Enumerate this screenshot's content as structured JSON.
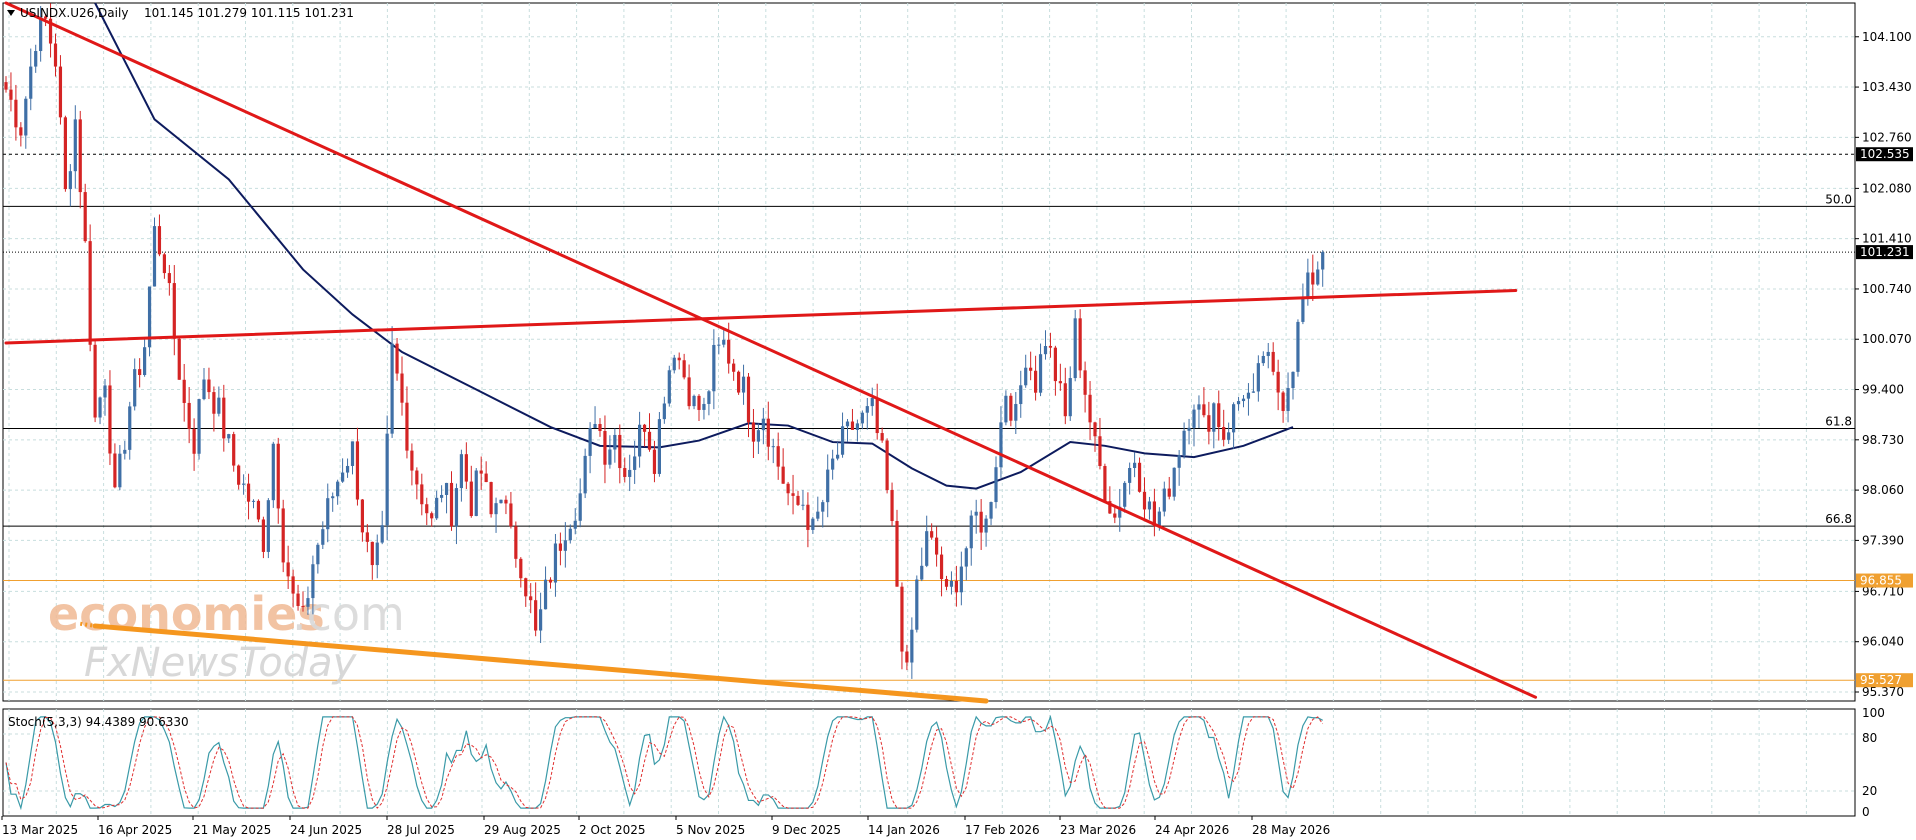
{
  "header": {
    "symbol_label": "USINDX.U26,Daily",
    "ohlc_label": "101.145 101.279 101.115 101.231"
  },
  "watermark": {
    "line1": "economies",
    "line1_suffix": ".com",
    "line2": "FxNewsToday"
  },
  "chart_data": [
    {
      "type": "candlestick",
      "title": "USINDX.U26,Daily",
      "ohlc_latest": {
        "open": 101.145,
        "high": 101.279,
        "low": 101.115,
        "close": 101.231
      },
      "x_ticks": [
        "13 Mar 2025",
        "16 Apr 2025",
        "21 May 2025",
        "24 Jun 2025",
        "28 Jul 2025",
        "29 Aug 2025",
        "2 Oct 2025",
        "5 Nov 2025",
        "9 Dec 2025",
        "14 Jan 2026",
        "17 Feb 2026",
        "23 Mar 2026",
        "24 Apr 2026",
        "28 May 2026"
      ],
      "y_ticks": [
        "104.100",
        "103.430",
        "102.760",
        "102.080",
        "101.410",
        "100.740",
        "100.070",
        "99.400",
        "98.730",
        "98.060",
        "97.390",
        "96.710",
        "96.040",
        "95.370"
      ],
      "ylim": [
        95.25,
        104.55
      ],
      "price_labels": [
        {
          "value": 102.535,
          "text": "102.535",
          "color": "#000000",
          "line": "dashed"
        },
        {
          "value": 101.231,
          "text": "101.231",
          "color": "#000000",
          "line": "dotted"
        },
        {
          "value": 96.855,
          "text": "96.855",
          "color": "#f0a030",
          "line": "solid"
        },
        {
          "value": 95.527,
          "text": "95.527",
          "color": "#f0a030",
          "line": "solid"
        }
      ],
      "fib_levels": [
        {
          "label": "50.0",
          "value": 101.84
        },
        {
          "label": "61.8",
          "value": 98.88
        },
        {
          "label": "66.8",
          "value": 97.58
        }
      ],
      "trendlines": [
        {
          "name": "falling resistance",
          "color": "#e01818",
          "from": {
            "bar": 0,
            "price": 104.55
          },
          "to": {
            "bar": 309,
            "price": 95.3
          }
        },
        {
          "name": "horizontal trendline",
          "color": "#e01818",
          "from": {
            "bar": 0,
            "price": 100.02
          },
          "to": {
            "bar": 305,
            "price": 100.72
          }
        },
        {
          "name": "support line",
          "color": "#f5961e",
          "from": {
            "bar": 18,
            "price": 96.25
          },
          "to": {
            "bar": 198,
            "price": 95.25
          }
        }
      ],
      "moving_average": {
        "color": "#0d1b5e",
        "points": [
          {
            "bar": 18,
            "price": 104.55
          },
          {
            "bar": 30,
            "price": 103.0
          },
          {
            "bar": 45,
            "price": 102.2
          },
          {
            "bar": 60,
            "price": 101.0
          },
          {
            "bar": 70,
            "price": 100.4
          },
          {
            "bar": 80,
            "price": 99.9
          },
          {
            "bar": 95,
            "price": 99.4
          },
          {
            "bar": 110,
            "price": 98.9
          },
          {
            "bar": 120,
            "price": 98.65
          },
          {
            "bar": 132,
            "price": 98.63
          },
          {
            "bar": 140,
            "price": 98.72
          },
          {
            "bar": 150,
            "price": 98.95
          },
          {
            "bar": 158,
            "price": 98.92
          },
          {
            "bar": 167,
            "price": 98.7
          },
          {
            "bar": 175,
            "price": 98.68
          },
          {
            "bar": 183,
            "price": 98.35
          },
          {
            "bar": 190,
            "price": 98.12
          },
          {
            "bar": 196,
            "price": 98.08
          },
          {
            "bar": 205,
            "price": 98.3
          },
          {
            "bar": 215,
            "price": 98.7
          },
          {
            "bar": 222,
            "price": 98.65
          },
          {
            "bar": 230,
            "price": 98.55
          },
          {
            "bar": 240,
            "price": 98.5
          },
          {
            "bar": 250,
            "price": 98.65
          },
          {
            "bar": 260,
            "price": 98.9
          }
        ]
      },
      "candles": [
        {
          "bar": 0,
          "close": 103.4
        },
        {
          "bar": 3,
          "close": 102.9
        },
        {
          "bar": 6,
          "close": 104.1
        },
        {
          "bar": 8,
          "close": 104.3
        },
        {
          "bar": 10,
          "close": 103.8
        },
        {
          "bar": 12,
          "close": 102.0
        },
        {
          "bar": 14,
          "close": 103.0
        },
        {
          "bar": 16,
          "close": 101.3
        },
        {
          "bar": 18,
          "close": 99.0
        },
        {
          "bar": 20,
          "close": 99.6
        },
        {
          "bar": 22,
          "close": 97.9
        },
        {
          "bar": 25,
          "close": 99.2
        },
        {
          "bar": 28,
          "close": 100.0
        },
        {
          "bar": 30,
          "close": 101.5
        },
        {
          "bar": 32,
          "close": 101.1
        },
        {
          "bar": 34,
          "close": 100.1
        },
        {
          "bar": 36,
          "close": 99.2
        },
        {
          "bar": 38,
          "close": 98.7
        },
        {
          "bar": 40,
          "close": 99.6
        },
        {
          "bar": 43,
          "close": 99.1
        },
        {
          "bar": 46,
          "close": 98.4
        },
        {
          "bar": 50,
          "close": 97.8
        },
        {
          "bar": 52,
          "close": 97.4
        },
        {
          "bar": 54,
          "close": 98.7
        },
        {
          "bar": 56,
          "close": 97.3
        },
        {
          "bar": 58,
          "close": 96.6
        },
        {
          "bar": 60,
          "close": 96.3
        },
        {
          "bar": 62,
          "close": 97.1
        },
        {
          "bar": 65,
          "close": 97.8
        },
        {
          "bar": 68,
          "close": 98.4
        },
        {
          "bar": 70,
          "close": 98.6
        },
        {
          "bar": 72,
          "close": 97.6
        },
        {
          "bar": 74,
          "close": 96.9
        },
        {
          "bar": 76,
          "close": 97.4
        },
        {
          "bar": 78,
          "close": 99.9
        },
        {
          "bar": 80,
          "close": 99.2
        },
        {
          "bar": 82,
          "close": 98.4
        },
        {
          "bar": 84,
          "close": 98.0
        },
        {
          "bar": 86,
          "close": 97.6
        },
        {
          "bar": 88,
          "close": 98.1
        },
        {
          "bar": 90,
          "close": 97.8
        },
        {
          "bar": 92,
          "close": 98.5
        },
        {
          "bar": 94,
          "close": 97.9
        },
        {
          "bar": 96,
          "close": 98.3
        },
        {
          "bar": 98,
          "close": 97.7
        },
        {
          "bar": 100,
          "close": 98.1
        },
        {
          "bar": 102,
          "close": 97.4
        },
        {
          "bar": 104,
          "close": 97.1
        },
        {
          "bar": 106,
          "close": 96.5
        },
        {
          "bar": 107,
          "close": 96.1
        },
        {
          "bar": 109,
          "close": 96.7
        },
        {
          "bar": 111,
          "close": 97.2
        },
        {
          "bar": 113,
          "close": 97.6
        },
        {
          "bar": 116,
          "close": 98.0
        },
        {
          "bar": 119,
          "close": 99.1
        },
        {
          "bar": 121,
          "close": 98.6
        },
        {
          "bar": 123,
          "close": 98.8
        },
        {
          "bar": 125,
          "close": 98.3
        },
        {
          "bar": 127,
          "close": 98.6
        },
        {
          "bar": 129,
          "close": 99.0
        },
        {
          "bar": 131,
          "close": 98.5
        },
        {
          "bar": 133,
          "close": 99.4
        },
        {
          "bar": 135,
          "close": 100.0
        },
        {
          "bar": 137,
          "close": 99.6
        },
        {
          "bar": 139,
          "close": 99.2
        },
        {
          "bar": 141,
          "close": 99.1
        },
        {
          "bar": 143,
          "close": 99.8
        },
        {
          "bar": 145,
          "close": 100.0
        },
        {
          "bar": 147,
          "close": 99.7
        },
        {
          "bar": 149,
          "close": 99.4
        },
        {
          "bar": 151,
          "close": 98.9
        },
        {
          "bar": 153,
          "close": 99.1
        },
        {
          "bar": 155,
          "close": 98.6
        },
        {
          "bar": 157,
          "close": 98.2
        },
        {
          "bar": 159,
          "close": 97.8
        },
        {
          "bar": 161,
          "close": 97.9
        },
        {
          "bar": 163,
          "close": 97.5
        },
        {
          "bar": 165,
          "close": 97.9
        },
        {
          "bar": 167,
          "close": 98.4
        },
        {
          "bar": 169,
          "close": 98.7
        },
        {
          "bar": 171,
          "close": 98.9
        },
        {
          "bar": 173,
          "close": 99.0
        },
        {
          "bar": 175,
          "close": 99.1
        },
        {
          "bar": 177,
          "close": 98.5
        },
        {
          "bar": 179,
          "close": 97.5
        },
        {
          "bar": 181,
          "close": 96.1
        },
        {
          "bar": 182,
          "close": 95.55
        },
        {
          "bar": 184,
          "close": 96.8
        },
        {
          "bar": 186,
          "close": 97.4
        },
        {
          "bar": 188,
          "close": 97.2
        },
        {
          "bar": 190,
          "close": 96.6
        },
        {
          "bar": 192,
          "close": 96.9
        },
        {
          "bar": 194,
          "close": 97.3
        },
        {
          "bar": 196,
          "close": 97.7
        },
        {
          "bar": 198,
          "close": 97.6
        },
        {
          "bar": 200,
          "close": 98.5
        },
        {
          "bar": 202,
          "close": 99.4
        },
        {
          "bar": 204,
          "close": 99.0
        },
        {
          "bar": 206,
          "close": 99.9
        },
        {
          "bar": 208,
          "close": 99.5
        },
        {
          "bar": 210,
          "close": 100.1
        },
        {
          "bar": 212,
          "close": 99.6
        },
        {
          "bar": 214,
          "close": 99.0
        },
        {
          "bar": 216,
          "close": 100.2
        },
        {
          "bar": 218,
          "close": 99.4
        },
        {
          "bar": 220,
          "close": 98.6
        },
        {
          "bar": 222,
          "close": 98.1
        },
        {
          "bar": 224,
          "close": 97.7
        },
        {
          "bar": 226,
          "close": 98.2
        },
        {
          "bar": 228,
          "close": 98.5
        },
        {
          "bar": 230,
          "close": 98.0
        },
        {
          "bar": 232,
          "close": 97.6
        },
        {
          "bar": 234,
          "close": 97.9
        },
        {
          "bar": 236,
          "close": 98.4
        },
        {
          "bar": 238,
          "close": 98.9
        },
        {
          "bar": 240,
          "close": 99.3
        },
        {
          "bar": 242,
          "close": 98.9
        },
        {
          "bar": 244,
          "close": 99.2
        },
        {
          "bar": 246,
          "close": 98.8
        },
        {
          "bar": 248,
          "close": 99.1
        },
        {
          "bar": 250,
          "close": 99.4
        },
        {
          "bar": 252,
          "close": 99.2
        },
        {
          "bar": 254,
          "close": 99.9
        },
        {
          "bar": 256,
          "close": 99.5
        },
        {
          "bar": 258,
          "close": 99.3
        },
        {
          "bar": 260,
          "close": 99.8
        },
        {
          "bar": 262,
          "close": 100.6
        },
        {
          "bar": 264,
          "close": 100.9
        },
        {
          "bar": 266,
          "close": 101.231
        }
      ]
    },
    {
      "type": "line",
      "title": "Stoch(5,3,3) 94.4389 90.6330",
      "series": [
        {
          "name": "%K",
          "color": "#3a9aa8",
          "latest": 94.4389
        },
        {
          "name": "%D",
          "color": "#e03030",
          "latest": 90.633
        }
      ],
      "y_ticks": [
        "100",
        "80",
        "20",
        "0"
      ],
      "ylim": [
        0,
        100
      ]
    }
  ]
}
